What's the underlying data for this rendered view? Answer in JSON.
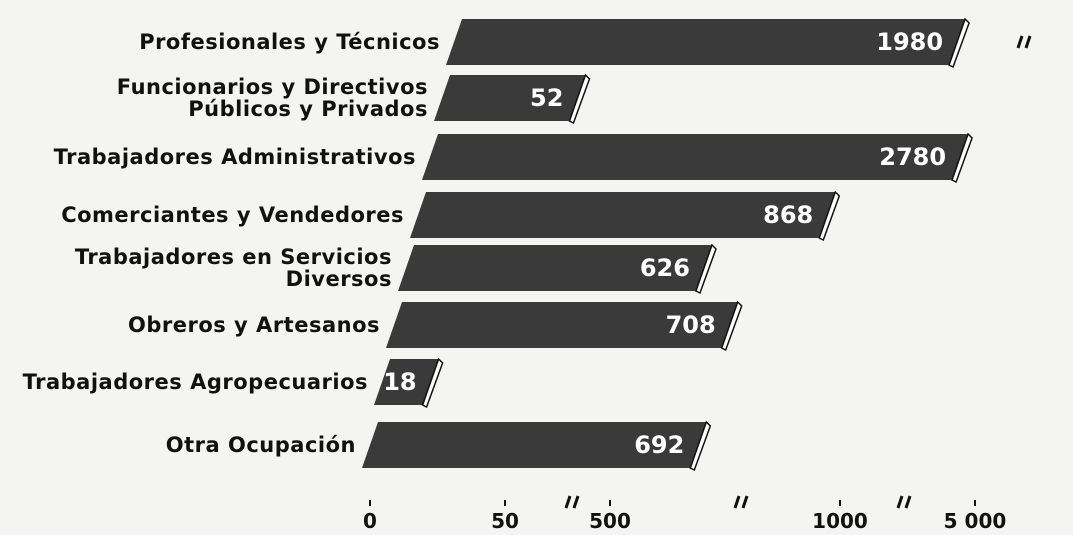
{
  "chart_data": {
    "type": "bar",
    "orientation": "horizontal",
    "categories": [
      "Profesionales y Técnicos",
      "Funcionarios y Directivos\nPúblicos y Privados",
      "Trabajadores Administrativos",
      "Comerciantes y Vendedores",
      "Trabajadores en Servicios\nDiversos",
      "Obreros y Artesanos",
      "Trabajadores Agropecuarios",
      "Otra Ocupación"
    ],
    "values": [
      1980,
      52,
      2780,
      868,
      626,
      708,
      18,
      692
    ],
    "color": "#3a3a3a",
    "xlim": [
      0,
      5000
    ],
    "xticks": [
      0,
      50,
      500,
      1000,
      {
        "value": 5000,
        "label": "5 000"
      }
    ],
    "axis_breaks": true
  }
}
